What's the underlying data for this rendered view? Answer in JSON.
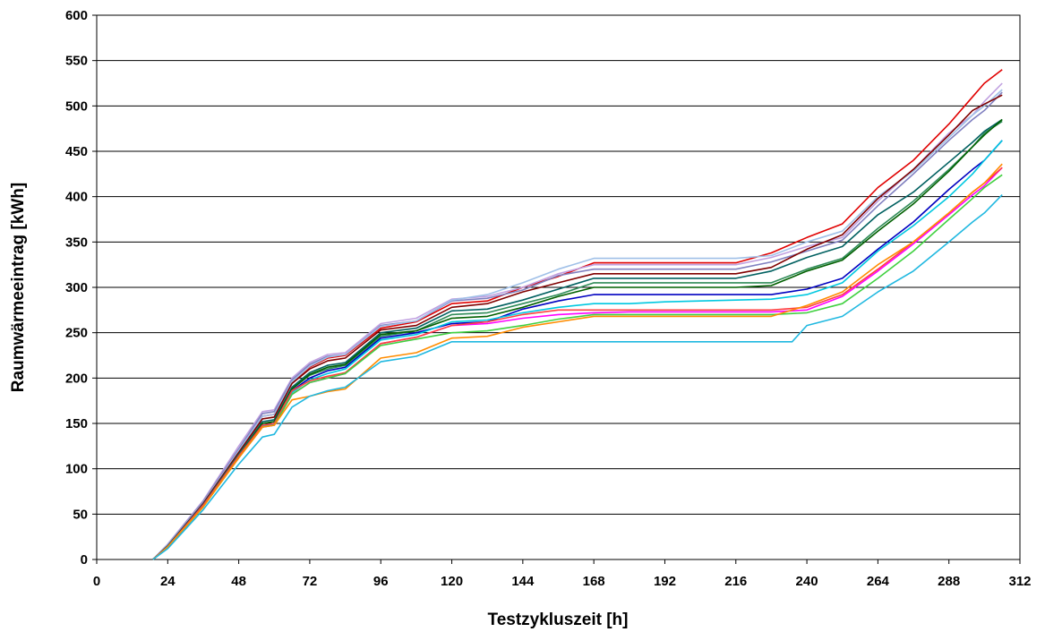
{
  "chart_data": {
    "type": "line",
    "title": "",
    "xlabel": "Testzykluszeit [h]",
    "ylabel": "Raumwärmeeintrag [kWh]",
    "xlim": [
      0,
      312
    ],
    "ylim": [
      0,
      600
    ],
    "xticks": [
      0,
      24,
      48,
      72,
      96,
      120,
      144,
      168,
      192,
      216,
      240,
      264,
      288,
      312
    ],
    "yticks": [
      0,
      50,
      100,
      150,
      200,
      250,
      300,
      350,
      400,
      450,
      500,
      550,
      600
    ],
    "grid": "horizontal",
    "legend": "none",
    "series": [
      {
        "color": "#e00000",
        "x": [
          19,
          24,
          36,
          48,
          56,
          60,
          66,
          72,
          78,
          84,
          96,
          108,
          120,
          132,
          144,
          156,
          168,
          180,
          192,
          204,
          216,
          228,
          240,
          252,
          264,
          276,
          288,
          296,
          300,
          306
        ],
        "y": [
          0,
          15,
          62,
          118,
          158,
          160,
          195,
          212,
          222,
          225,
          255,
          262,
          282,
          285,
          300,
          312,
          327,
          327,
          327,
          327,
          327,
          338,
          355,
          370,
          410,
          440,
          480,
          510,
          525,
          540
        ]
      },
      {
        "color": "#c0a0e0",
        "x": [
          19,
          24,
          36,
          48,
          56,
          60,
          66,
          72,
          78,
          84,
          96,
          108,
          120,
          132,
          144,
          156,
          168,
          180,
          192,
          204,
          216,
          228,
          240,
          252,
          264,
          276,
          288,
          296,
          300,
          306
        ],
        "y": [
          0,
          17,
          65,
          125,
          163,
          165,
          200,
          217,
          226,
          228,
          260,
          266,
          287,
          290,
          300,
          315,
          325,
          325,
          325,
          325,
          325,
          333,
          345,
          355,
          395,
          430,
          470,
          490,
          505,
          525
        ]
      },
      {
        "color": "#8080c0",
        "x": [
          19,
          24,
          36,
          48,
          56,
          60,
          66,
          72,
          78,
          84,
          96,
          108,
          120,
          132,
          144,
          156,
          168,
          180,
          192,
          204,
          216,
          228,
          240,
          252,
          264,
          276,
          288,
          296,
          300,
          306
        ],
        "y": [
          0,
          16,
          64,
          122,
          161,
          163,
          198,
          215,
          224,
          226,
          258,
          263,
          285,
          288,
          297,
          313,
          320,
          320,
          320,
          320,
          320,
          328,
          340,
          352,
          390,
          425,
          462,
          485,
          495,
          515
        ]
      },
      {
        "color": "#a0c0e8",
        "x": [
          19,
          24,
          36,
          48,
          56,
          60,
          66,
          72,
          78,
          84,
          96,
          108,
          120,
          132,
          144,
          156,
          168,
          180,
          192,
          204,
          216,
          228,
          240,
          252,
          264,
          276,
          288,
          296,
          300,
          306
        ],
        "y": [
          0,
          16,
          63,
          120,
          158,
          160,
          196,
          213,
          223,
          226,
          257,
          263,
          286,
          292,
          305,
          320,
          332,
          332,
          332,
          332,
          332,
          335,
          350,
          362,
          400,
          428,
          465,
          490,
          500,
          518
        ]
      },
      {
        "color": "#800000",
        "x": [
          19,
          24,
          36,
          48,
          56,
          60,
          66,
          72,
          78,
          84,
          96,
          108,
          120,
          132,
          144,
          156,
          168,
          180,
          192,
          204,
          216,
          228,
          240,
          252,
          264,
          276,
          288,
          296,
          300,
          306
        ],
        "y": [
          0,
          15,
          62,
          118,
          155,
          157,
          194,
          210,
          219,
          222,
          253,
          258,
          278,
          282,
          295,
          305,
          315,
          315,
          315,
          315,
          315,
          322,
          342,
          358,
          398,
          430,
          468,
          495,
          502,
          512
        ]
      },
      {
        "color": "#006060",
        "x": [
          19,
          24,
          36,
          48,
          56,
          60,
          66,
          72,
          78,
          84,
          96,
          108,
          120,
          132,
          144,
          156,
          168,
          180,
          192,
          204,
          216,
          228,
          240,
          252,
          264,
          276,
          288,
          296,
          300,
          306
        ],
        "y": [
          0,
          15,
          61,
          116,
          152,
          154,
          190,
          206,
          214,
          217,
          250,
          255,
          274,
          276,
          286,
          298,
          310,
          310,
          310,
          310,
          310,
          318,
          333,
          345,
          380,
          405,
          438,
          460,
          472,
          485
        ]
      },
      {
        "color": "#2e8b57",
        "x": [
          19,
          24,
          36,
          48,
          56,
          60,
          66,
          72,
          78,
          84,
          96,
          108,
          120,
          132,
          144,
          156,
          168,
          180,
          192,
          204,
          216,
          228,
          240,
          252,
          264,
          276,
          288,
          296,
          300,
          306
        ],
        "y": [
          0,
          14,
          60,
          115,
          150,
          152,
          188,
          203,
          210,
          214,
          246,
          252,
          270,
          272,
          282,
          292,
          305,
          305,
          305,
          305,
          305,
          305,
          320,
          332,
          365,
          395,
          430,
          455,
          470,
          483
        ]
      },
      {
        "color": "#006000",
        "x": [
          19,
          24,
          36,
          48,
          56,
          60,
          66,
          72,
          78,
          84,
          96,
          108,
          120,
          132,
          144,
          156,
          168,
          180,
          192,
          204,
          216,
          228,
          240,
          252,
          264,
          276,
          288,
          296,
          300,
          306
        ],
        "y": [
          0,
          14,
          60,
          114,
          150,
          152,
          188,
          204,
          212,
          215,
          248,
          252,
          266,
          268,
          278,
          290,
          300,
          300,
          300,
          300,
          300,
          302,
          318,
          330,
          362,
          392,
          428,
          455,
          468,
          485
        ]
      },
      {
        "color": "#0000c0",
        "x": [
          19,
          24,
          36,
          48,
          56,
          60,
          66,
          72,
          78,
          84,
          96,
          108,
          120,
          132,
          144,
          156,
          168,
          180,
          192,
          204,
          216,
          228,
          240,
          252,
          264,
          276,
          288,
          296,
          300,
          306
        ],
        "y": [
          0,
          14,
          60,
          113,
          148,
          150,
          186,
          200,
          208,
          212,
          244,
          250,
          260,
          262,
          276,
          285,
          292,
          292,
          292,
          292,
          292,
          292,
          298,
          310,
          342,
          372,
          408,
          430,
          440,
          462
        ]
      },
      {
        "color": "#00c8e0",
        "x": [
          19,
          24,
          36,
          48,
          56,
          60,
          66,
          72,
          78,
          84,
          96,
          108,
          120,
          132,
          144,
          156,
          168,
          180,
          192,
          204,
          216,
          228,
          240,
          252,
          264,
          276,
          288,
          296,
          300,
          306
        ],
        "y": [
          0,
          14,
          59,
          112,
          147,
          149,
          184,
          198,
          205,
          210,
          242,
          248,
          262,
          264,
          272,
          278,
          282,
          282,
          284,
          285,
          286,
          287,
          292,
          305,
          340,
          368,
          400,
          425,
          440,
          462
        ]
      },
      {
        "color": "#ff00ff",
        "x": [
          19,
          24,
          36,
          48,
          56,
          60,
          66,
          72,
          78,
          84,
          96,
          108,
          120,
          132,
          144,
          156,
          168,
          180,
          192,
          204,
          216,
          228,
          240,
          252,
          264,
          276,
          288,
          296,
          300,
          306
        ],
        "y": [
          0,
          14,
          59,
          112,
          146,
          148,
          182,
          195,
          200,
          205,
          238,
          245,
          258,
          260,
          266,
          270,
          272,
          273,
          273,
          273,
          273,
          273,
          275,
          290,
          318,
          348,
          380,
          402,
          412,
          432
        ]
      },
      {
        "color": "#ff4040",
        "x": [
          19,
          24,
          36,
          48,
          56,
          60,
          66,
          72,
          78,
          84,
          96,
          108,
          120,
          132,
          144,
          156,
          168,
          180,
          192,
          204,
          216,
          228,
          240,
          252,
          264,
          276,
          288,
          296,
          300,
          306
        ],
        "y": [
          0,
          14,
          60,
          114,
          148,
          150,
          186,
          197,
          202,
          206,
          238,
          245,
          258,
          262,
          270,
          275,
          275,
          275,
          275,
          275,
          275,
          275,
          278,
          292,
          320,
          350,
          382,
          405,
          415,
          432
        ]
      },
      {
        "color": "#40d040",
        "x": [
          19,
          24,
          36,
          48,
          56,
          60,
          66,
          72,
          78,
          84,
          96,
          108,
          120,
          132,
          144,
          156,
          168,
          180,
          192,
          204,
          216,
          228,
          240,
          252,
          264,
          276,
          288,
          296,
          300,
          306
        ],
        "y": [
          0,
          13,
          58,
          112,
          146,
          148,
          182,
          195,
          200,
          205,
          236,
          243,
          250,
          252,
          258,
          265,
          270,
          270,
          270,
          270,
          270,
          270,
          272,
          282,
          310,
          340,
          375,
          398,
          410,
          424
        ]
      },
      {
        "color": "#ff8c00",
        "x": [
          19,
          24,
          36,
          48,
          56,
          60,
          66,
          72,
          78,
          84,
          96,
          108,
          120,
          132,
          144,
          156,
          168,
          180,
          192,
          204,
          216,
          228,
          240,
          252,
          264,
          276,
          288,
          296,
          300,
          306
        ],
        "y": [
          0,
          14,
          58,
          112,
          146,
          148,
          176,
          180,
          185,
          188,
          222,
          228,
          244,
          246,
          256,
          262,
          268,
          268,
          268,
          268,
          268,
          268,
          280,
          295,
          325,
          350,
          382,
          405,
          415,
          436
        ]
      },
      {
        "color": "#20b8e0",
        "x": [
          19,
          24,
          36,
          48,
          56,
          60,
          66,
          72,
          78,
          84,
          96,
          108,
          120,
          132,
          144,
          156,
          168,
          180,
          192,
          204,
          216,
          228,
          235,
          240,
          252,
          264,
          276,
          288,
          296,
          300,
          306
        ],
        "y": [
          0,
          12,
          55,
          105,
          135,
          138,
          168,
          180,
          186,
          190,
          218,
          224,
          240,
          240,
          240,
          240,
          240,
          240,
          240,
          240,
          240,
          240,
          240,
          258,
          268,
          295,
          318,
          350,
          372,
          382,
          402
        ]
      }
    ]
  }
}
